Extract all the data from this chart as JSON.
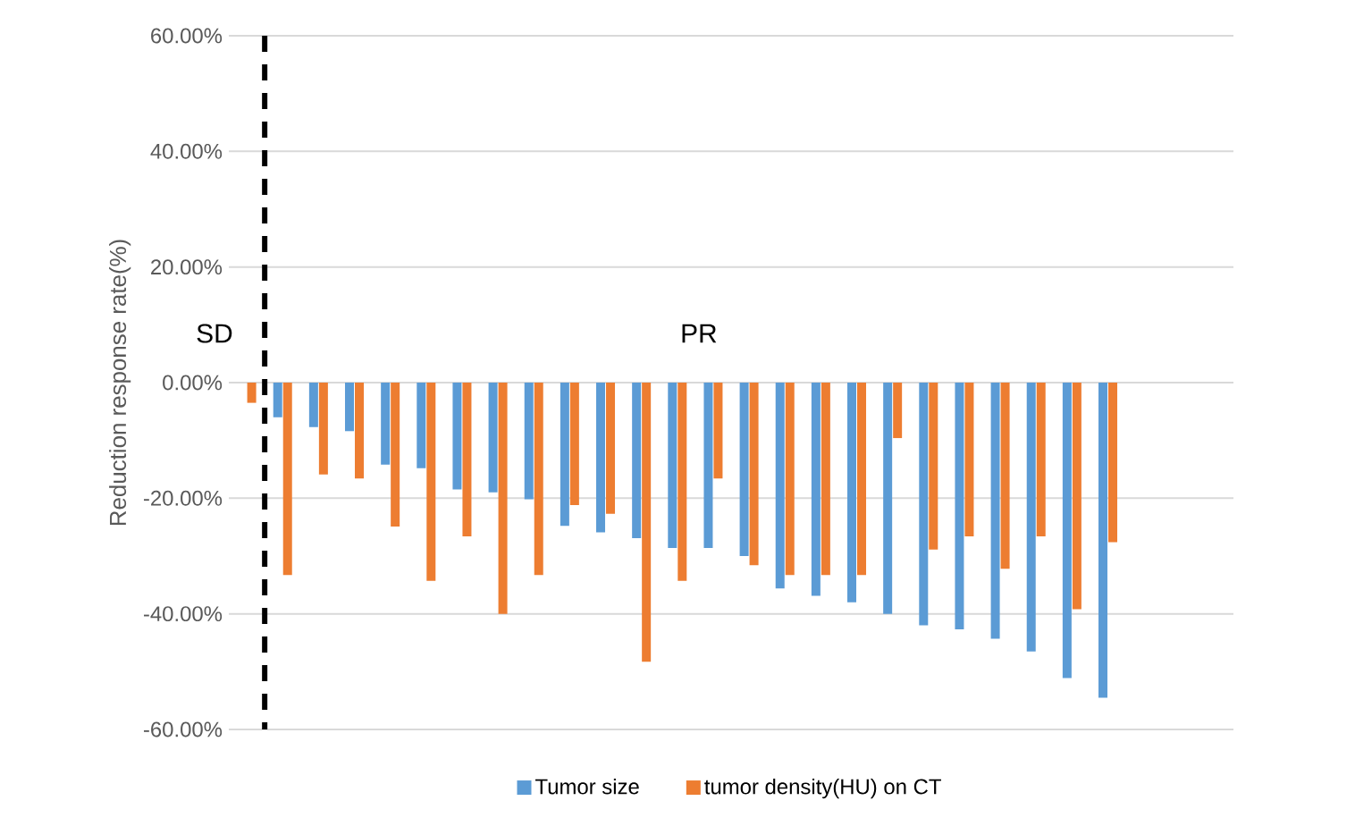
{
  "chart_data": {
    "type": "bar",
    "ylabel": "Reduction response rate(%)",
    "categories": [
      null,
      null,
      null,
      null,
      null,
      null,
      null,
      null,
      null,
      null,
      null,
      null,
      null,
      null,
      null,
      null,
      null,
      null,
      null,
      null,
      null,
      null,
      null,
      null,
      null,
      null,
      null,
      null
    ],
    "series": [
      {
        "name": "Tumor size",
        "color": "#5b9bd5",
        "values": [
          null,
          -6.0,
          -7.7,
          -8.4,
          -14.2,
          -14.8,
          -18.5,
          -19.0,
          -20.2,
          -24.8,
          -25.9,
          -26.9,
          -28.6,
          -28.6,
          -30.0,
          -35.6,
          -36.9,
          -38.0,
          -40.0,
          -42.0,
          -42.7,
          -44.3,
          -46.5,
          -51.1,
          -54.5,
          null,
          null,
          null
        ]
      },
      {
        "name": "tumor density(HU) on CT",
        "color": "#ed7d31",
        "values": [
          -3.5,
          -33.3,
          -15.9,
          -16.6,
          -24.9,
          -34.3,
          -26.6,
          -40.0,
          -33.3,
          -21.2,
          -22.7,
          -48.3,
          -34.3,
          -16.6,
          -31.6,
          -33.3,
          -33.3,
          -33.3,
          -9.6,
          -28.9,
          -26.6,
          -32.2,
          -26.6,
          -39.2,
          -27.6,
          null,
          null,
          null
        ]
      }
    ],
    "ylim": [
      -60,
      60
    ],
    "yticks": [
      {
        "value": -60,
        "label": "-60.00%"
      },
      {
        "value": -40,
        "label": "-40.00%"
      },
      {
        "value": -20,
        "label": "-20.00%"
      },
      {
        "value": 0,
        "label": "0.00%"
      },
      {
        "value": 20,
        "label": "20.00%"
      },
      {
        "value": 40,
        "label": "40.00%"
      },
      {
        "value": 60,
        "label": "60.00%"
      }
    ],
    "annotations": [
      "SD",
      "PR"
    ],
    "grid": "y",
    "legend": "bottom"
  }
}
